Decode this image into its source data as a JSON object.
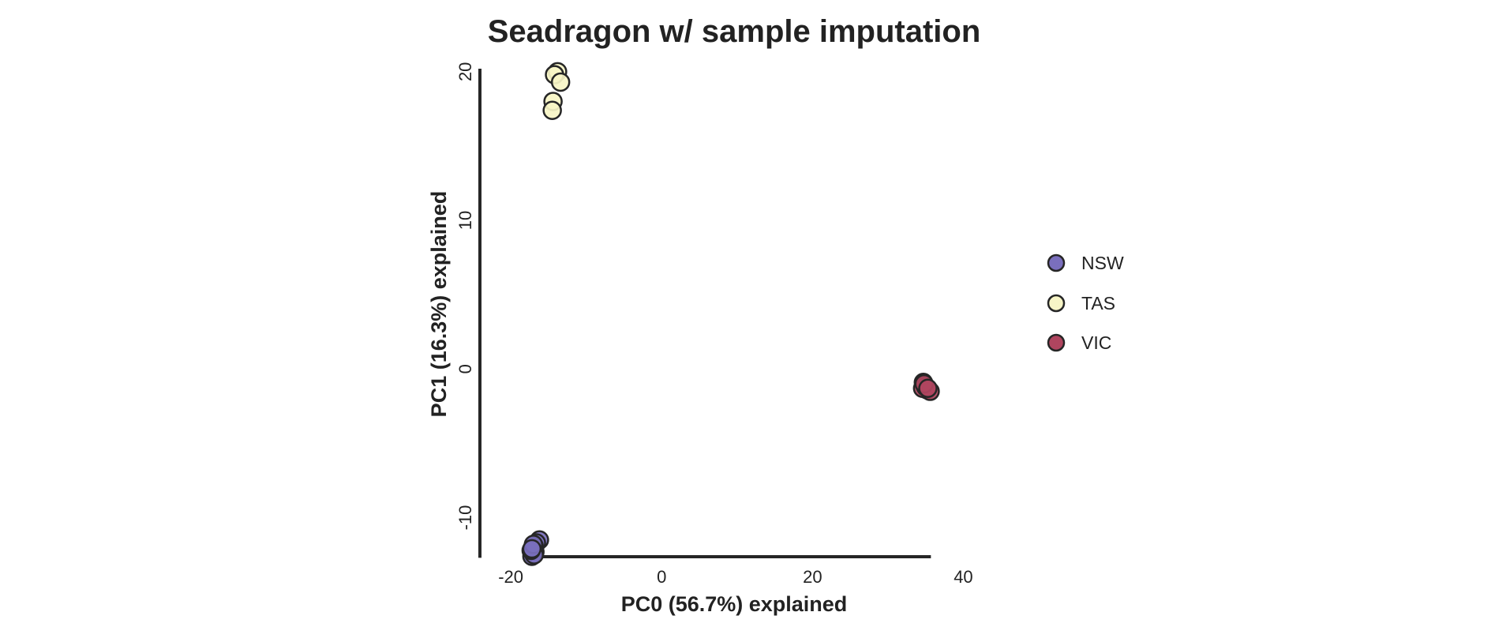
{
  "chart_data": {
    "type": "scatter",
    "title": "Seadragon w/ sample imputation",
    "xlabel": "PC0 (56.7%) explained",
    "ylabel": "PC1 (16.3%) explained",
    "xlim": [
      -22,
      41
    ],
    "ylim": [
      -13,
      21
    ],
    "x_spine_range": [
      -17.5,
      35.7
    ],
    "y_spine_range": [
      -12.7,
      20.2
    ],
    "xticks": [
      "-20",
      "0",
      "20",
      "40"
    ],
    "xtick_values": [
      -20,
      0,
      20,
      40
    ],
    "yticks": [
      "-10",
      "0",
      "10",
      "20"
    ],
    "ytick_values": [
      -10,
      0,
      10,
      20
    ],
    "grid": false,
    "legend_position": "right",
    "series": [
      {
        "name": "NSW",
        "color": "#7a6fbd",
        "points": [
          [
            -16.2,
            -11.5
          ],
          [
            -16.6,
            -11.7
          ],
          [
            -16.9,
            -11.9
          ],
          [
            -17.0,
            -12.0
          ],
          [
            -16.8,
            -12.3
          ],
          [
            -17.1,
            -12.4
          ],
          [
            -17.2,
            -12.6
          ],
          [
            -16.9,
            -12.5
          ],
          [
            -17.3,
            -12.2
          ],
          [
            -17.0,
            -11.8
          ],
          [
            -17.2,
            -12.1
          ]
        ]
      },
      {
        "name": "TAS",
        "color": "#f7f5c6",
        "points": [
          [
            -13.8,
            20.0
          ],
          [
            -14.2,
            19.8
          ],
          [
            -13.4,
            19.3
          ],
          [
            -14.4,
            18.0
          ],
          [
            -14.5,
            17.4
          ]
        ]
      },
      {
        "name": "VIC",
        "color": "#b0455f",
        "points": [
          [
            34.7,
            -0.9
          ],
          [
            34.9,
            -1.1
          ],
          [
            35.2,
            -1.4
          ],
          [
            34.6,
            -1.3
          ],
          [
            35.0,
            -1.2
          ],
          [
            35.6,
            -1.5
          ],
          [
            34.8,
            -1.0
          ],
          [
            35.3,
            -1.3
          ]
        ]
      }
    ]
  }
}
